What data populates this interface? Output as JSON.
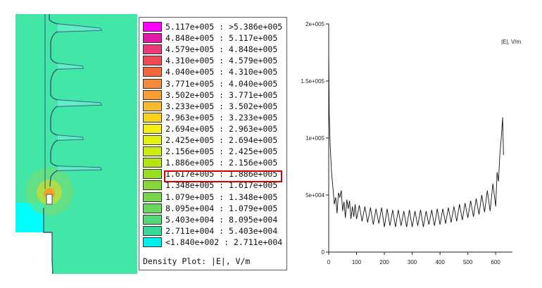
{
  "legend": {
    "caption": "Density Plot: |E|, V/m",
    "highlighted_index": 13,
    "entries": [
      {
        "label": "5.117e+005 : >5.386e+005",
        "color": "#ff00ff"
      },
      {
        "label": "4.848e+005 : 5.117e+005",
        "color": "#e21aa9"
      },
      {
        "label": "4.579e+005 : 4.848e+005",
        "color": "#ec3a7a"
      },
      {
        "label": "4.310e+005 : 4.579e+005",
        "color": "#f04a55"
      },
      {
        "label": "4.040e+005 : 4.310e+005",
        "color": "#f5683c"
      },
      {
        "label": "3.771e+005 : 4.040e+005",
        "color": "#f78a3a"
      },
      {
        "label": "3.502e+005 : 3.771e+005",
        "color": "#fa9e34"
      },
      {
        "label": "3.233e+005 : 3.502e+005",
        "color": "#f9bb2c"
      },
      {
        "label": "2.963e+005 : 3.233e+005",
        "color": "#f8d21c"
      },
      {
        "label": "2.694e+005 : 2.963e+005",
        "color": "#f4ee14"
      },
      {
        "label": "2.425e+005 : 2.694e+005",
        "color": "#e3f111"
      },
      {
        "label": "2.156e+005 : 2.425e+005",
        "color": "#ccec12"
      },
      {
        "label": "1.886e+005 : 2.156e+005",
        "color": "#b3e515"
      },
      {
        "label": "1.617e+005 : 1.886e+005",
        "color": "#9ade22"
      },
      {
        "label": "1.348e+005 : 1.617e+005",
        "color": "#86d838"
      },
      {
        "label": "1.079e+005 : 1.348e+005",
        "color": "#76d44e"
      },
      {
        "label": "8.095e+004 : 1.079e+005",
        "color": "#6ad65c"
      },
      {
        "label": "5.403e+004 : 8.095e+004",
        "color": "#55d878"
      },
      {
        "label": "2.711e+004 : 5.403e+004",
        "color": "#3ad79a"
      },
      {
        "label": "<1.840e+002 : 2.711e+004",
        "color": "#00eeee"
      }
    ]
  },
  "fem": {
    "field_color": "#42e6a6",
    "boundary_color": "#00ffff",
    "outline_color": "#355a78",
    "hotspot_color": "#f6a12a"
  },
  "chart_data": {
    "type": "line",
    "ylabel": "|E|, V/m",
    "xlim": [
      0,
      640
    ],
    "ylim": [
      0,
      200000
    ],
    "xticks": [
      0,
      100,
      200,
      300,
      400,
      500,
      600
    ],
    "yticks": [
      0,
      50000,
      100000,
      150000,
      200000
    ],
    "xtick_labels": [
      "0",
      "100",
      "200",
      "300",
      "400",
      "500",
      "600"
    ],
    "ytick_labels": [
      "0",
      "5e+004",
      "1e+005",
      "1.5e+005",
      "2e+005"
    ],
    "x": [
      0,
      2,
      5,
      10,
      15,
      20,
      25,
      30,
      35,
      40,
      45,
      50,
      55,
      60,
      65,
      70,
      75,
      80,
      85,
      90,
      95,
      100,
      110,
      120,
      130,
      140,
      150,
      160,
      170,
      180,
      190,
      200,
      210,
      220,
      230,
      240,
      250,
      260,
      270,
      280,
      290,
      300,
      310,
      320,
      330,
      340,
      350,
      360,
      370,
      380,
      390,
      400,
      410,
      420,
      430,
      440,
      450,
      460,
      470,
      480,
      490,
      500,
      510,
      520,
      530,
      540,
      550,
      560,
      570,
      580,
      590,
      600,
      605,
      610,
      615,
      620,
      625,
      628
    ],
    "values": [
      172000,
      120000,
      95000,
      70000,
      57000,
      42000,
      48000,
      34000,
      52000,
      48000,
      54000,
      36000,
      44000,
      30000,
      46000,
      38000,
      45000,
      29000,
      40000,
      31000,
      42000,
      29000,
      41000,
      27000,
      40000,
      26000,
      39000,
      24000,
      38000,
      25000,
      39000,
      22000,
      38000,
      23000,
      37000,
      22000,
      37000,
      23000,
      36000,
      22000,
      37000,
      22000,
      36000,
      23000,
      37000,
      22000,
      36000,
      24000,
      37000,
      23000,
      38000,
      24000,
      38000,
      25000,
      39000,
      26000,
      40000,
      27000,
      42000,
      28000,
      43000,
      30000,
      45000,
      31000,
      47000,
      33000,
      50000,
      35000,
      54000,
      36000,
      60000,
      40000,
      70000,
      62000,
      85000,
      100000,
      118000,
      85000
    ]
  }
}
